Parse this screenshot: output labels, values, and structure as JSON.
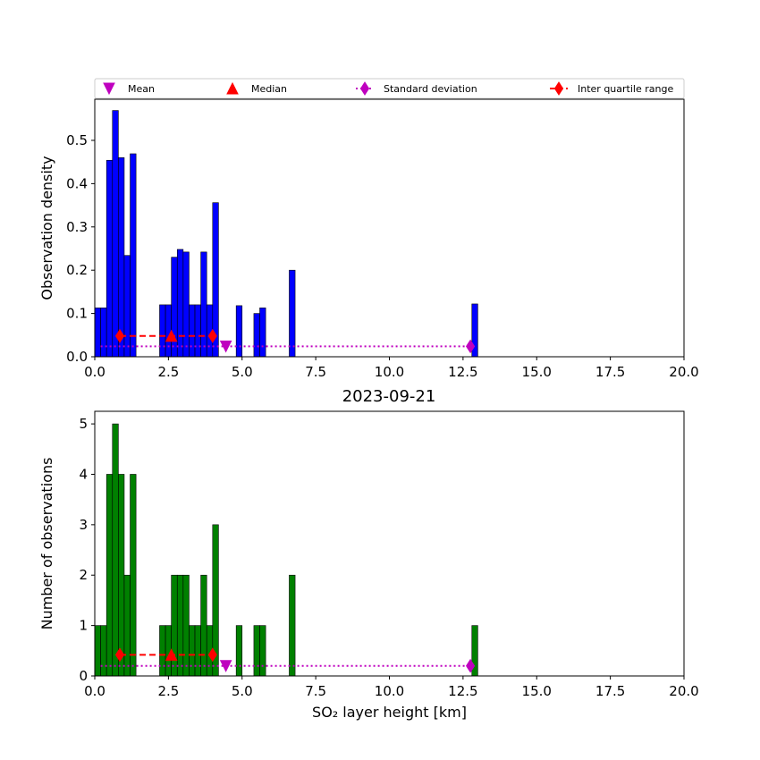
{
  "figure": {
    "title": "2023-09-21"
  },
  "legend": {
    "placement": "top",
    "items": [
      {
        "label": "Mean",
        "marker": "triangle-down",
        "color": "#bf00bf",
        "line": "none"
      },
      {
        "label": "Median",
        "marker": "triangle-up",
        "color": "#ff0000",
        "line": "none"
      },
      {
        "label": "Standard deviation",
        "marker": "diamond",
        "color": "#bf00bf",
        "line": "dotted"
      },
      {
        "label": "Inter quartile range",
        "marker": "diamond",
        "color": "#ff0000",
        "line": "dashed"
      }
    ]
  },
  "chart_data": [
    {
      "type": "bar",
      "subplot": "top",
      "ylabel": "Observation density",
      "xlabel": "",
      "xlim": [
        0,
        20
      ],
      "ylim": [
        0,
        0.595
      ],
      "xticks": [
        "0.0",
        "2.5",
        "5.0",
        "7.5",
        "10.0",
        "12.5",
        "15.0",
        "17.5",
        "20.0"
      ],
      "yticks": [
        "0.0",
        "0.1",
        "0.2",
        "0.3",
        "0.4",
        "0.5"
      ],
      "bar_color": "#0000ff",
      "bins": [
        {
          "x0": 0.0,
          "x1": 0.2,
          "value": 0.113
        },
        {
          "x0": 0.2,
          "x1": 0.4,
          "value": 0.113
        },
        {
          "x0": 0.4,
          "x1": 0.6,
          "value": 0.454
        },
        {
          "x0": 0.6,
          "x1": 0.8,
          "value": 0.569
        },
        {
          "x0": 0.8,
          "x1": 1.0,
          "value": 0.46
        },
        {
          "x0": 1.0,
          "x1": 1.2,
          "value": 0.234
        },
        {
          "x0": 1.2,
          "x1": 1.4,
          "value": 0.469
        },
        {
          "x0": 2.2,
          "x1": 2.4,
          "value": 0.12
        },
        {
          "x0": 2.4,
          "x1": 2.6,
          "value": 0.12
        },
        {
          "x0": 2.6,
          "x1": 2.8,
          "value": 0.23
        },
        {
          "x0": 2.8,
          "x1": 3.0,
          "value": 0.248
        },
        {
          "x0": 3.0,
          "x1": 3.2,
          "value": 0.242
        },
        {
          "x0": 3.2,
          "x1": 3.4,
          "value": 0.12
        },
        {
          "x0": 3.4,
          "x1": 3.6,
          "value": 0.12
        },
        {
          "x0": 3.6,
          "x1": 3.8,
          "value": 0.242
        },
        {
          "x0": 3.8,
          "x1": 4.0,
          "value": 0.12
        },
        {
          "x0": 4.0,
          "x1": 4.2,
          "value": 0.356
        },
        {
          "x0": 4.8,
          "x1": 5.0,
          "value": 0.118
        },
        {
          "x0": 5.4,
          "x1": 5.6,
          "value": 0.1
        },
        {
          "x0": 5.6,
          "x1": 5.8,
          "value": 0.113
        },
        {
          "x0": 6.6,
          "x1": 6.8,
          "value": 0.2
        },
        {
          "x0": 12.8,
          "x1": 13.0,
          "value": 0.122
        }
      ],
      "stats": {
        "mean": {
          "x": 4.45,
          "y": 0.024
        },
        "median": {
          "x": 2.6,
          "y": 0.048
        },
        "std_range": {
          "x": [
            0.2,
            12.75
          ],
          "y": 0.024
        },
        "iqr_range": {
          "x": [
            0.85,
            4.0
          ],
          "y": 0.048
        }
      }
    },
    {
      "type": "bar",
      "subplot": "bottom",
      "title": "2023-09-21",
      "ylabel": "Number of observations",
      "xlabel": "SO₂ layer height [km]",
      "xlim": [
        0,
        20
      ],
      "ylim": [
        0,
        5.25
      ],
      "xticks": [
        "0.0",
        "2.5",
        "5.0",
        "7.5",
        "10.0",
        "12.5",
        "15.0",
        "17.5",
        "20.0"
      ],
      "yticks": [
        "0",
        "1",
        "2",
        "3",
        "4",
        "5"
      ],
      "bar_color": "#008000",
      "bins": [
        {
          "x0": 0.0,
          "x1": 0.2,
          "value": 1
        },
        {
          "x0": 0.2,
          "x1": 0.4,
          "value": 1
        },
        {
          "x0": 0.4,
          "x1": 0.6,
          "value": 4
        },
        {
          "x0": 0.6,
          "x1": 0.8,
          "value": 5
        },
        {
          "x0": 0.8,
          "x1": 1.0,
          "value": 4
        },
        {
          "x0": 1.0,
          "x1": 1.2,
          "value": 2
        },
        {
          "x0": 1.2,
          "x1": 1.4,
          "value": 4
        },
        {
          "x0": 2.2,
          "x1": 2.4,
          "value": 1
        },
        {
          "x0": 2.4,
          "x1": 2.6,
          "value": 1
        },
        {
          "x0": 2.6,
          "x1": 2.8,
          "value": 2
        },
        {
          "x0": 2.8,
          "x1": 3.0,
          "value": 2
        },
        {
          "x0": 3.0,
          "x1": 3.2,
          "value": 2
        },
        {
          "x0": 3.2,
          "x1": 3.4,
          "value": 1
        },
        {
          "x0": 3.4,
          "x1": 3.6,
          "value": 1
        },
        {
          "x0": 3.6,
          "x1": 3.8,
          "value": 2
        },
        {
          "x0": 3.8,
          "x1": 4.0,
          "value": 1
        },
        {
          "x0": 4.0,
          "x1": 4.2,
          "value": 3
        },
        {
          "x0": 4.8,
          "x1": 5.0,
          "value": 1
        },
        {
          "x0": 5.4,
          "x1": 5.6,
          "value": 1
        },
        {
          "x0": 5.6,
          "x1": 5.8,
          "value": 1
        },
        {
          "x0": 6.6,
          "x1": 6.8,
          "value": 2
        },
        {
          "x0": 12.8,
          "x1": 13.0,
          "value": 1
        }
      ],
      "stats": {
        "mean": {
          "x": 4.45,
          "y": 0.2
        },
        "median": {
          "x": 2.6,
          "y": 0.42
        },
        "std_range": {
          "x": [
            0.2,
            12.75
          ],
          "y": 0.2
        },
        "iqr_range": {
          "x": [
            0.85,
            4.0
          ],
          "y": 0.42
        }
      }
    }
  ]
}
